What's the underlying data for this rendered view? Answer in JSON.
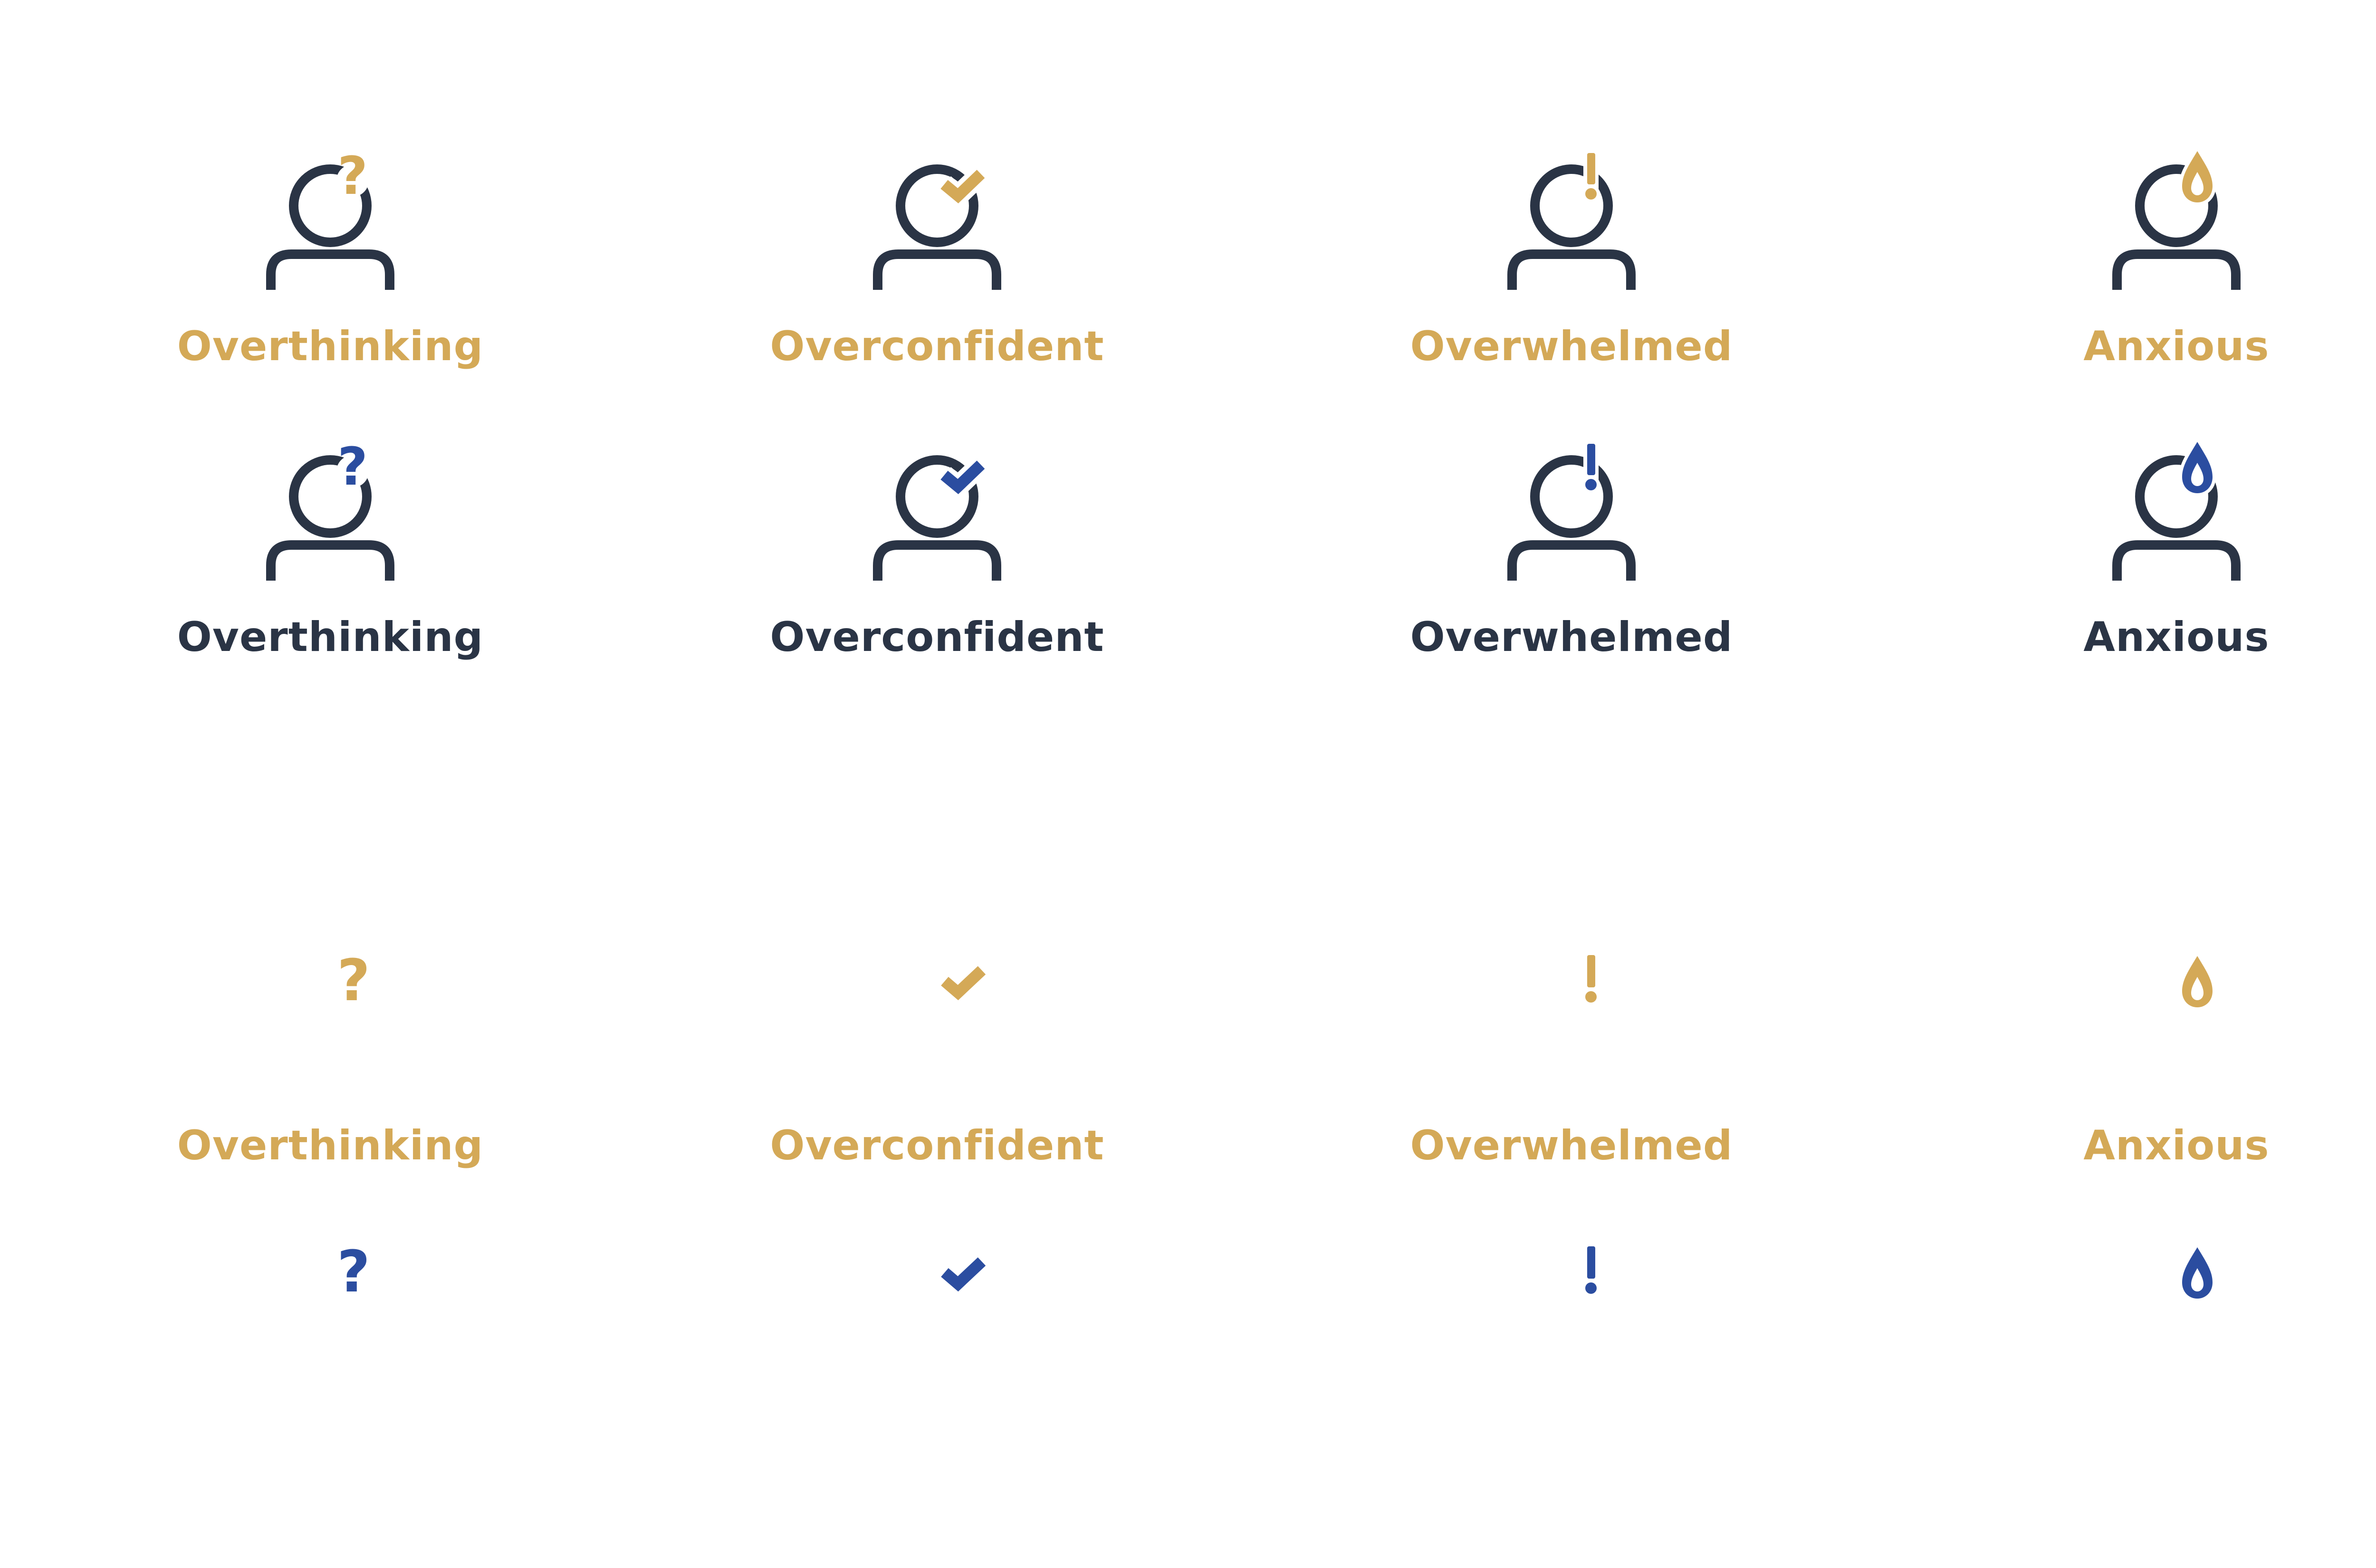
{
  "colors": {
    "gold": "#D4A957",
    "blue": "#2B4DA0",
    "navy": "#2A3445",
    "background": "#FFFFFF"
  },
  "emotions": [
    {
      "key": "overthinking",
      "label": "Overthinking",
      "symbol": "question-mark-icon"
    },
    {
      "key": "overconfident",
      "label": "Overconfident",
      "symbol": "checkmark-icon"
    },
    {
      "key": "overwhelmed",
      "label": "Overwhelmed",
      "symbol": "exclamation-mark-icon"
    },
    {
      "key": "anxious",
      "label": "Anxious",
      "symbol": "sweat-drop-icon"
    }
  ],
  "rows": {
    "person_gold": {
      "label_color": "gold",
      "symbol_color": "gold"
    },
    "person_blue": {
      "label_color": "navy",
      "symbol_color": "blue"
    },
    "symbols_gold": {
      "label_color": "gold",
      "symbol_color": "gold"
    },
    "symbols_blue": {
      "symbol_color": "blue"
    }
  }
}
